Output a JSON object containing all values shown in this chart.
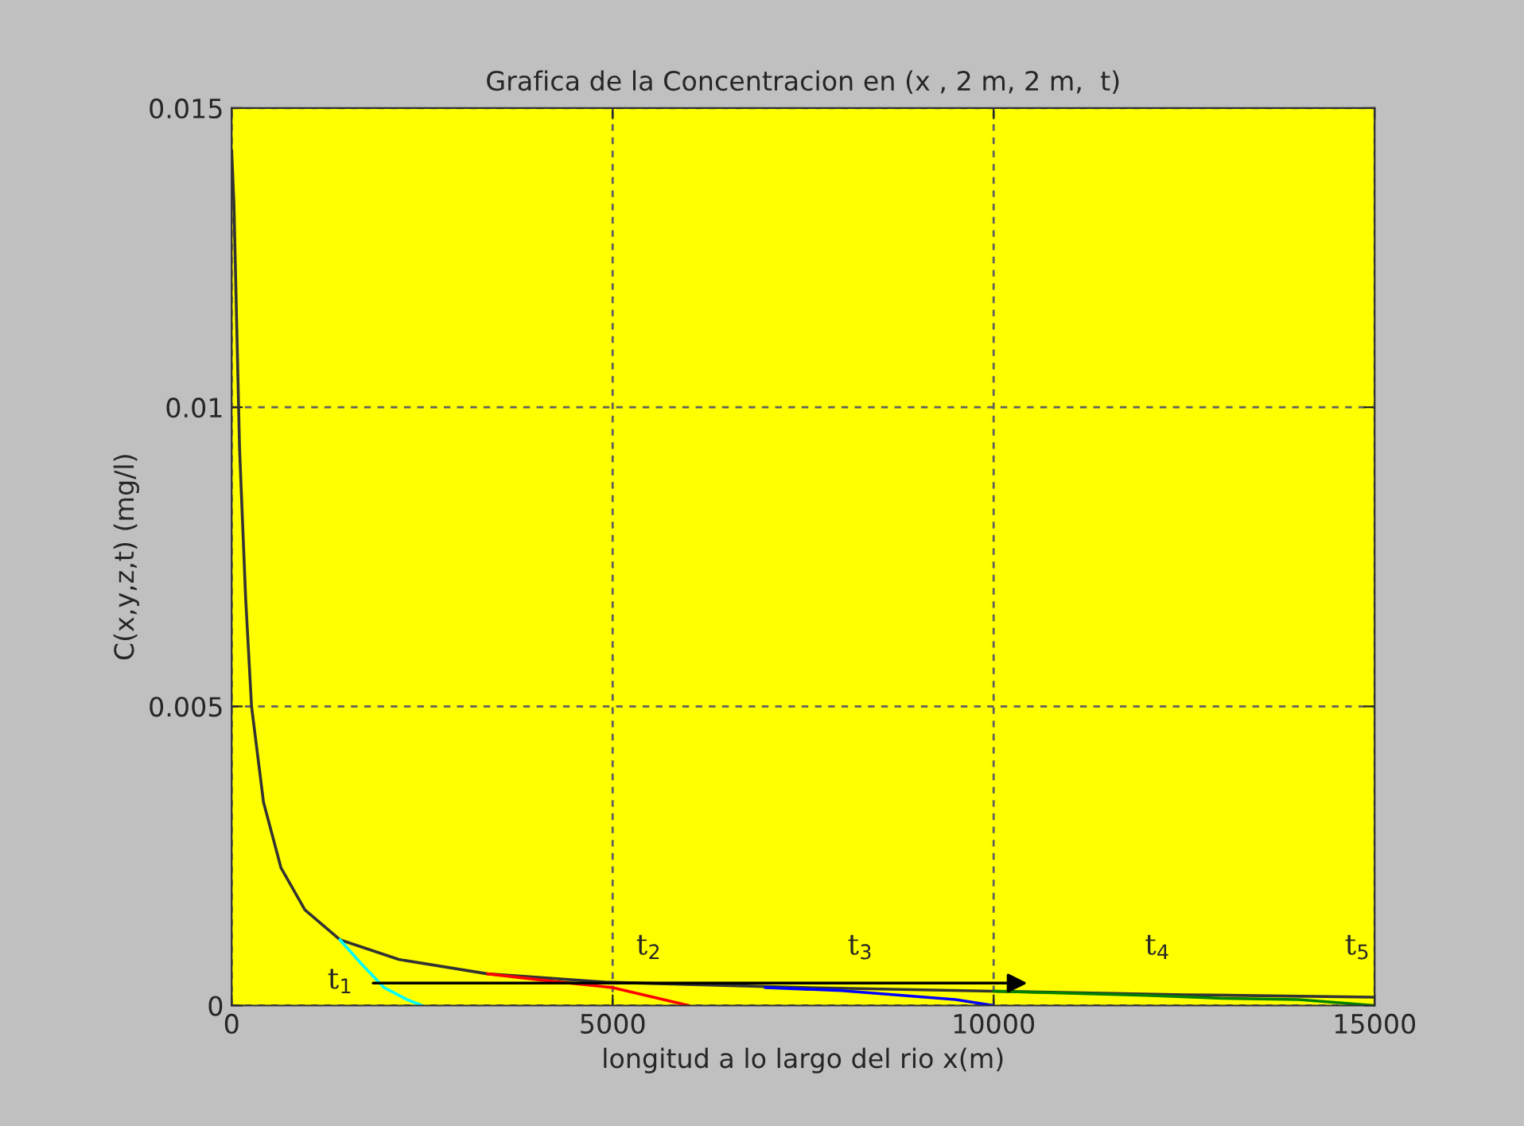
{
  "chart_data": {
    "type": "line",
    "title": "Grafica de la Concentracion en (x , 2 m, 2 m,  t)",
    "xlabel": "longitud a lo largo del rio x(m)",
    "ylabel": "C(x,y,z,t) (mg/l)",
    "xlim": [
      0,
      15000
    ],
    "xticks": [
      0,
      5000,
      10000,
      15000
    ],
    "ylim": [
      0,
      0.015
    ],
    "yticks": [
      0,
      0.005,
      0.01,
      0.015
    ],
    "grid": true,
    "legend": false,
    "series": [
      {
        "color": "#333333",
        "x": [
          0,
          30,
          104,
          184,
          261,
          418,
          648,
          961,
          1420,
          2193,
          3357,
          4903,
          7500,
          10000,
          12500,
          15000
        ],
        "values": [
          0.0143,
          0.0134,
          0.0093,
          0.0068,
          0.005,
          0.0034,
          0.0023,
          0.0016,
          0.0011,
          0.00077,
          0.00053,
          0.00039,
          0.0003,
          0.00024,
          0.00018,
          0.00014
        ]
      },
      {
        "color": "#00ffff",
        "x": [
          1420,
          1700,
          2000,
          2300,
          2500
        ],
        "values": [
          0.0011,
          0.0007,
          0.0003,
          0.0001,
          0
        ]
      },
      {
        "color": "#ff0000",
        "x": [
          3357,
          4240,
          5000,
          5500,
          6000
        ],
        "values": [
          0.00053,
          0.0004,
          0.0003,
          0.00015,
          0
        ]
      },
      {
        "color": "#0000ff",
        "x": [
          7000,
          8000,
          9000,
          9500,
          10000
        ],
        "values": [
          0.0003,
          0.00025,
          0.00015,
          0.0001,
          0
        ]
      },
      {
        "color": "#008000",
        "x": [
          10000,
          12000,
          13000,
          14000,
          15000
        ],
        "values": [
          0.00024,
          0.00017,
          0.00012,
          0.0001,
          0
        ]
      }
    ],
    "annotations": [
      "t$_{1}$",
      "t$_{2}$",
      "t$_{3}$",
      "t$_{4}$",
      "t$_{5}$"
    ]
  }
}
